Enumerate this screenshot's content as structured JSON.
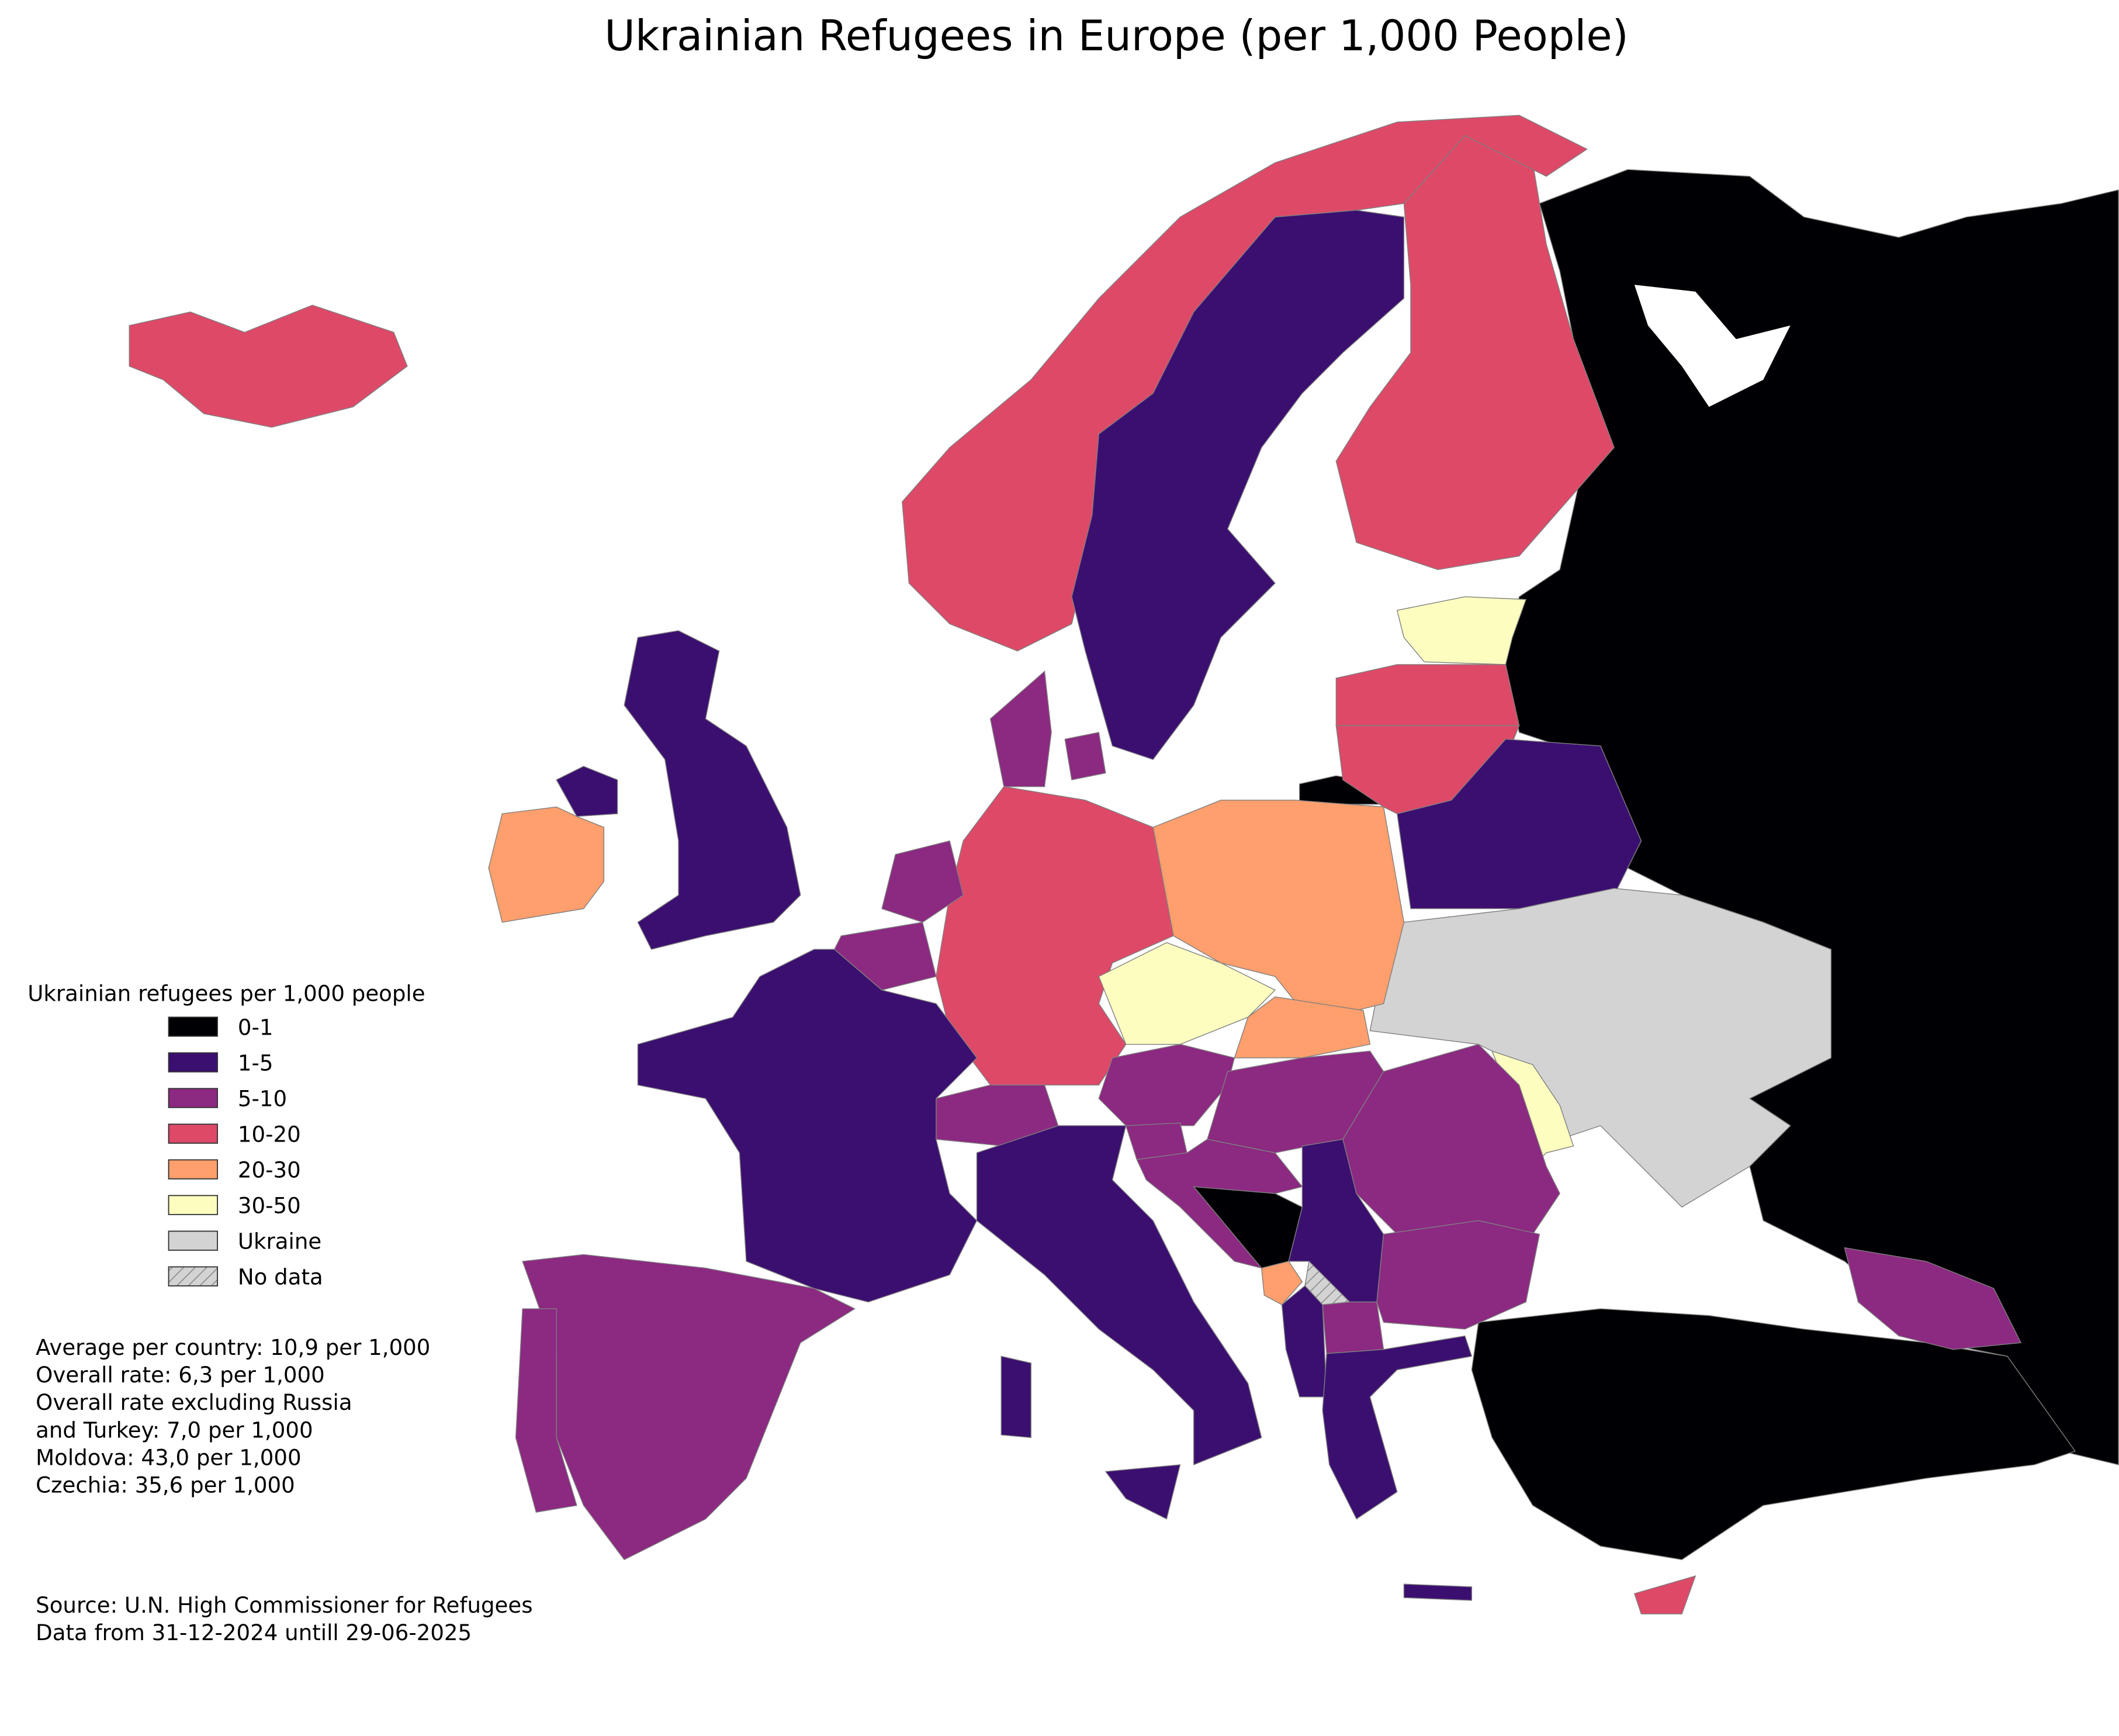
{
  "title": "Ukrainian Refugees in Europe (per 1,000 People)",
  "legend": {
    "title": "Ukrainian refugees per 1,000 people",
    "items": [
      {
        "label": "0-1",
        "color": "#000004"
      },
      {
        "label": "1-5",
        "color": "#3b0f70"
      },
      {
        "label": "5-10",
        "color": "#8c2981"
      },
      {
        "label": "10-20",
        "color": "#de4968"
      },
      {
        "label": "20-30",
        "color": "#fe9f6d"
      },
      {
        "label": "30-50",
        "color": "#fcfdbf"
      },
      {
        "label": "Ukraine",
        "color": "#d3d3d3"
      },
      {
        "label": "No data",
        "color": "#d3d3d3",
        "hatch": true
      }
    ]
  },
  "notes": [
    "Average per country: 10,9 per 1,000",
    "Overall rate: 6,3 per 1,000",
    "Overall rate excluding Russia",
    "and Turkey: 7,0 per 1,000",
    "Moldova: 43,0 per 1,000",
    "Czechia: 35,6 per 1,000"
  ],
  "source": [
    "Source: U.N. High Commissioner for Refugees",
    "Data from 31-12-2024 untill 29-06-2025"
  ]
}
